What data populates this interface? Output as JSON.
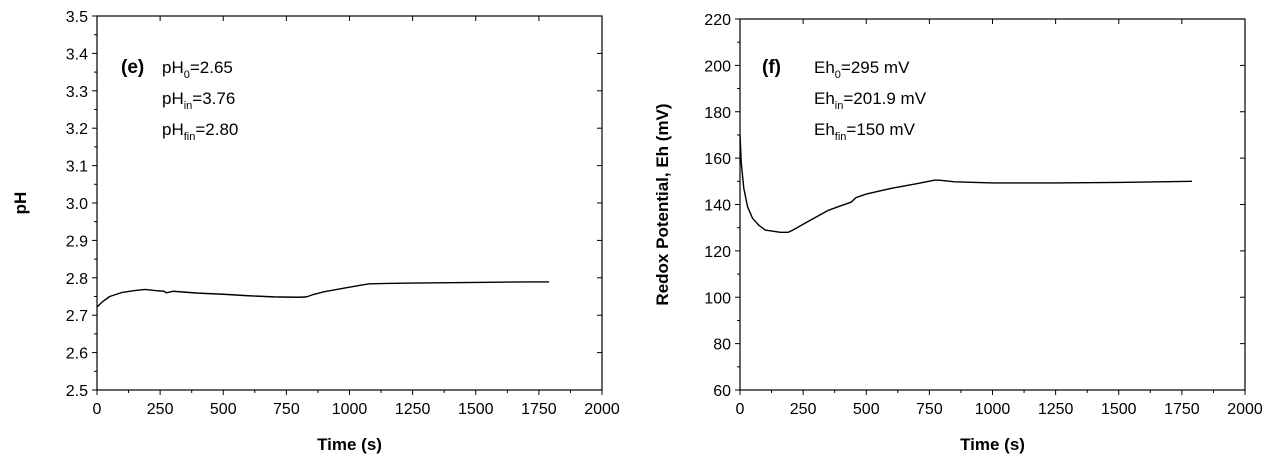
{
  "chart_data": [
    {
      "type": "line",
      "panel_label": "(e)",
      "xlabel": "Time (s)",
      "ylabel": "pH",
      "xlim": [
        0,
        2000
      ],
      "ylim": [
        2.5,
        3.5
      ],
      "xticks": [
        "0",
        "250",
        "500",
        "750",
        "1000",
        "1250",
        "1500",
        "1750",
        "2000"
      ],
      "yticks": [
        "2.5",
        "2.6",
        "2.7",
        "2.8",
        "2.9",
        "3.0",
        "3.1",
        "3.2",
        "3.3",
        "3.4",
        "3.5"
      ],
      "annotations": [
        {
          "base": "pH",
          "sub": "0",
          "rest": "=2.65"
        },
        {
          "base": "pH",
          "sub": "in",
          "rest": "=3.76"
        },
        {
          "base": "pH",
          "sub": "fin",
          "rest": "=2.80"
        }
      ],
      "grid": false,
      "line_color": "#000000",
      "series": [
        {
          "x": [
            0,
            20,
            50,
            100,
            150,
            190,
            230,
            265,
            275,
            300,
            400,
            500,
            600,
            700,
            800,
            830,
            860,
            900,
            950,
            1000,
            1050,
            1080,
            1150,
            1250,
            1400,
            1550,
            1700,
            1790
          ],
          "y": [
            2.722,
            2.735,
            2.75,
            2.761,
            2.766,
            2.769,
            2.766,
            2.764,
            2.76,
            2.764,
            2.759,
            2.756,
            2.752,
            2.749,
            2.748,
            2.749,
            2.756,
            2.763,
            2.769,
            2.775,
            2.781,
            2.784,
            2.785,
            2.786,
            2.787,
            2.788,
            2.789,
            2.789
          ]
        }
      ]
    },
    {
      "type": "line",
      "panel_label": "(f)",
      "xlabel": "Time (s)",
      "ylabel": "Redox Potential, Eh (mV)",
      "xlim": [
        0,
        2000
      ],
      "ylim": [
        60,
        220
      ],
      "xticks": [
        "0",
        "250",
        "500",
        "750",
        "1000",
        "1250",
        "1500",
        "1750",
        "2000"
      ],
      "yticks": [
        "60",
        "80",
        "100",
        "120",
        "140",
        "160",
        "180",
        "200",
        "220"
      ],
      "annotations": [
        {
          "base": "Eh",
          "sub": "0",
          "rest": "=295 mV"
        },
        {
          "base": "Eh",
          "sub": "in",
          "rest": "=201.9 mV"
        },
        {
          "base": "Eh",
          "sub": "fin",
          "rest": "=150 mV"
        }
      ],
      "grid": false,
      "line_color": "#000000",
      "series": [
        {
          "x": [
            0,
            5,
            15,
            30,
            50,
            75,
            100,
            130,
            160,
            190,
            210,
            250,
            300,
            350,
            400,
            440,
            460,
            500,
            600,
            700,
            770,
            790,
            850,
            1000,
            1250,
            1500,
            1790
          ],
          "y": [
            170,
            158,
            147,
            139,
            134,
            131,
            129,
            128.5,
            128,
            128,
            129,
            131.5,
            134.5,
            137.5,
            139.5,
            141,
            143,
            144.5,
            147,
            149,
            150.5,
            150.5,
            149.8,
            149.3,
            149.3,
            149.5,
            150
          ]
        }
      ]
    }
  ]
}
